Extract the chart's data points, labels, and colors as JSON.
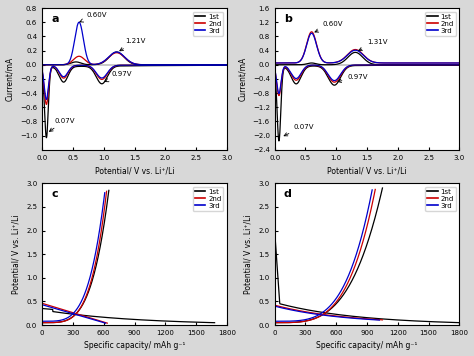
{
  "fig_bg": "#d8d8d8",
  "panel_bg": "#ffffff",
  "panel_labels": [
    "a",
    "b",
    "c",
    "d"
  ],
  "colors": {
    "1st": "#000000",
    "2nd": "#cc0000",
    "3rd": "#0000cc"
  },
  "legend_labels": [
    "1st",
    "2nd",
    "3rd"
  ],
  "panel_a": {
    "xlabel": "Potential/ V vs. Li⁺/Li",
    "ylabel": "Current/mA",
    "xlim": [
      0,
      3.0
    ],
    "ylim": [
      -1.2,
      0.8
    ],
    "xticks": [
      0.0,
      0.5,
      1.0,
      1.5,
      2.0,
      2.5,
      3.0
    ],
    "yticks": [
      -1.0,
      -0.8,
      -0.6,
      -0.4,
      -0.2,
      0.0,
      0.2,
      0.4,
      0.6,
      0.8
    ]
  },
  "panel_b": {
    "xlabel": "Potential/ V vs. Li⁺/Li",
    "ylabel": "Current/mA",
    "xlim": [
      0,
      3.0
    ],
    "ylim": [
      -2.4,
      1.6
    ],
    "xticks": [
      0.0,
      0.5,
      1.0,
      1.5,
      2.0,
      2.5,
      3.0
    ],
    "yticks": [
      -2.4,
      -2.0,
      -1.6,
      -1.2,
      -0.8,
      -0.4,
      0.0,
      0.4,
      0.8,
      1.2,
      1.6
    ]
  },
  "panel_c": {
    "xlabel": "Specific capacity/ mAh g⁻¹",
    "ylabel": "Potential/ V vs. Li⁺/Li",
    "xlim": [
      0,
      1800
    ],
    "ylim": [
      0,
      3.0
    ],
    "xticks": [
      0,
      300,
      600,
      900,
      1200,
      1500,
      1800
    ],
    "yticks": [
      0.0,
      0.5,
      1.0,
      1.5,
      2.0,
      2.5,
      3.0
    ]
  },
  "panel_d": {
    "xlabel": "Specific capacity/ mAh g⁻¹",
    "ylabel": "Potential/ V vs. Li⁺/Li",
    "xlim": [
      0,
      1800
    ],
    "ylim": [
      0,
      3.0
    ],
    "xticks": [
      0,
      300,
      600,
      900,
      1200,
      1500,
      1800
    ],
    "yticks": [
      0.0,
      0.5,
      1.0,
      1.5,
      2.0,
      2.5,
      3.0
    ]
  }
}
